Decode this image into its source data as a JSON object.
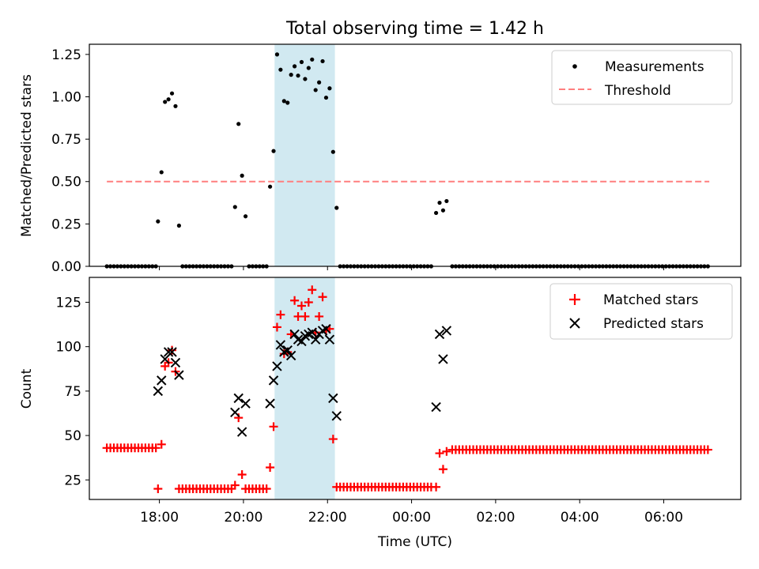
{
  "title": "Total observing time = 1.42 h",
  "xlabel": "Time (UTC)",
  "x_ticks": [
    "18:00",
    "20:00",
    "22:00",
    "00:00",
    "02:00",
    "04:00",
    "06:00"
  ],
  "colors": {
    "measurements": "#000000",
    "threshold": "#ff7f7f",
    "matched": "#ff0000",
    "predicted": "#000000",
    "shade": "#add8e6"
  },
  "chart_data": [
    {
      "type": "scatter",
      "panel": "top",
      "ylabel": "Matched/Predicted stars",
      "ylim": [
        0,
        1.31
      ],
      "y_ticks": [
        "0.00",
        "0.25",
        "0.50",
        "0.75",
        "1.00",
        "1.25"
      ],
      "xlim": [
        "16:20",
        "07:50"
      ],
      "highlight_span": [
        "20:45",
        "22:10"
      ],
      "legend": {
        "location": "upper right",
        "entries": [
          "Measurements",
          "Threshold"
        ]
      },
      "threshold": {
        "name": "Threshold",
        "y": 0.5,
        "x_range": [
          "16:45",
          "07:05"
        ]
      },
      "series": [
        {
          "name": "Measurements",
          "points": [
            [
              "16:45",
              0
            ],
            [
              "16:50",
              0
            ],
            [
              "16:55",
              0
            ],
            [
              "17:00",
              0
            ],
            [
              "17:05",
              0
            ],
            [
              "17:10",
              0
            ],
            [
              "17:15",
              0
            ],
            [
              "17:20",
              0
            ],
            [
              "17:25",
              0
            ],
            [
              "17:30",
              0
            ],
            [
              "17:35",
              0
            ],
            [
              "17:40",
              0
            ],
            [
              "17:45",
              0
            ],
            [
              "17:50",
              0
            ],
            [
              "17:55",
              0
            ],
            [
              "17:58",
              0.265
            ],
            [
              "18:03",
              0.555
            ],
            [
              "18:08",
              0.97
            ],
            [
              "18:13",
              0.985
            ],
            [
              "18:18",
              1.02
            ],
            [
              "18:23",
              0.945
            ],
            [
              "18:28",
              0.24
            ],
            [
              "18:33",
              0
            ],
            [
              "18:38",
              0
            ],
            [
              "18:43",
              0
            ],
            [
              "18:48",
              0
            ],
            [
              "18:53",
              0
            ],
            [
              "18:58",
              0
            ],
            [
              "19:03",
              0
            ],
            [
              "19:08",
              0
            ],
            [
              "19:13",
              0
            ],
            [
              "19:18",
              0
            ],
            [
              "19:23",
              0
            ],
            [
              "19:28",
              0
            ],
            [
              "19:33",
              0
            ],
            [
              "19:38",
              0
            ],
            [
              "19:43",
              0
            ],
            [
              "19:48",
              0.35
            ],
            [
              "19:53",
              0.84
            ],
            [
              "19:58",
              0.535
            ],
            [
              "20:03",
              0.295
            ],
            [
              "20:08",
              0
            ],
            [
              "20:13",
              0
            ],
            [
              "20:18",
              0
            ],
            [
              "20:23",
              0
            ],
            [
              "20:28",
              0
            ],
            [
              "20:33",
              0
            ],
            [
              "20:38",
              0.47
            ],
            [
              "20:43",
              0.68
            ],
            [
              "20:48",
              1.25
            ],
            [
              "20:53",
              1.16
            ],
            [
              "20:58",
              0.975
            ],
            [
              "21:03",
              0.965
            ],
            [
              "21:08",
              1.13
            ],
            [
              "21:13",
              1.18
            ],
            [
              "21:18",
              1.125
            ],
            [
              "21:23",
              1.205
            ],
            [
              "21:28",
              1.105
            ],
            [
              "21:33",
              1.17
            ],
            [
              "21:38",
              1.22
            ],
            [
              "21:43",
              1.04
            ],
            [
              "21:48",
              1.085
            ],
            [
              "21:53",
              1.21
            ],
            [
              "21:58",
              0.995
            ],
            [
              "22:03",
              1.05
            ],
            [
              "22:08",
              0.675
            ],
            [
              "22:13",
              0.345
            ],
            [
              "22:18",
              0
            ],
            [
              "22:23",
              0
            ],
            [
              "22:28",
              0
            ],
            [
              "22:33",
              0
            ],
            [
              "22:38",
              0
            ],
            [
              "22:43",
              0
            ],
            [
              "22:48",
              0
            ],
            [
              "22:53",
              0
            ],
            [
              "22:58",
              0
            ],
            [
              "23:03",
              0
            ],
            [
              "23:08",
              0
            ],
            [
              "23:13",
              0
            ],
            [
              "23:18",
              0
            ],
            [
              "23:23",
              0
            ],
            [
              "23:28",
              0
            ],
            [
              "23:33",
              0
            ],
            [
              "23:38",
              0
            ],
            [
              "23:43",
              0
            ],
            [
              "23:48",
              0
            ],
            [
              "23:53",
              0
            ],
            [
              "23:58",
              0
            ],
            [
              "00:03",
              0
            ],
            [
              "00:08",
              0
            ],
            [
              "00:13",
              0
            ],
            [
              "00:18",
              0
            ],
            [
              "00:23",
              0
            ],
            [
              "00:28",
              0
            ],
            [
              "00:35",
              0.315
            ],
            [
              "00:40",
              0.375
            ],
            [
              "00:45",
              0.33
            ],
            [
              "00:50",
              0.385
            ],
            [
              "00:58",
              0
            ],
            [
              "01:03",
              0
            ],
            [
              "01:08",
              0
            ],
            [
              "01:13",
              0
            ],
            [
              "01:18",
              0
            ],
            [
              "01:23",
              0
            ],
            [
              "01:28",
              0
            ],
            [
              "01:33",
              0
            ],
            [
              "01:38",
              0
            ],
            [
              "01:43",
              0
            ],
            [
              "01:48",
              0
            ],
            [
              "01:53",
              0
            ],
            [
              "01:58",
              0
            ],
            [
              "02:03",
              0
            ],
            [
              "02:08",
              0
            ],
            [
              "02:13",
              0
            ],
            [
              "02:18",
              0
            ],
            [
              "02:23",
              0
            ],
            [
              "02:28",
              0
            ],
            [
              "02:33",
              0
            ],
            [
              "02:38",
              0
            ],
            [
              "02:43",
              0
            ],
            [
              "02:48",
              0
            ],
            [
              "02:53",
              0
            ],
            [
              "02:58",
              0
            ],
            [
              "03:03",
              0
            ],
            [
              "03:08",
              0
            ],
            [
              "03:13",
              0
            ],
            [
              "03:18",
              0
            ],
            [
              "03:23",
              0
            ],
            [
              "03:28",
              0
            ],
            [
              "03:33",
              0
            ],
            [
              "03:38",
              0
            ],
            [
              "03:43",
              0
            ],
            [
              "03:48",
              0
            ],
            [
              "03:53",
              0
            ],
            [
              "03:58",
              0
            ],
            [
              "04:03",
              0
            ],
            [
              "04:08",
              0
            ],
            [
              "04:13",
              0
            ],
            [
              "04:18",
              0
            ],
            [
              "04:23",
              0
            ],
            [
              "04:28",
              0
            ],
            [
              "04:33",
              0
            ],
            [
              "04:38",
              0
            ],
            [
              "04:43",
              0
            ],
            [
              "04:48",
              0
            ],
            [
              "04:53",
              0
            ],
            [
              "04:58",
              0
            ],
            [
              "05:03",
              0
            ],
            [
              "05:08",
              0
            ],
            [
              "05:13",
              0
            ],
            [
              "05:18",
              0
            ],
            [
              "05:23",
              0
            ],
            [
              "05:28",
              0
            ],
            [
              "05:33",
              0
            ],
            [
              "05:38",
              0
            ],
            [
              "05:43",
              0
            ],
            [
              "05:48",
              0
            ],
            [
              "05:53",
              0
            ],
            [
              "05:58",
              0
            ],
            [
              "06:03",
              0
            ],
            [
              "06:08",
              0
            ],
            [
              "06:13",
              0
            ],
            [
              "06:18",
              0
            ],
            [
              "06:23",
              0
            ],
            [
              "06:28",
              0
            ],
            [
              "06:33",
              0
            ],
            [
              "06:38",
              0
            ],
            [
              "06:43",
              0
            ],
            [
              "06:48",
              0
            ],
            [
              "06:53",
              0
            ],
            [
              "06:58",
              0
            ],
            [
              "07:03",
              0
            ]
          ]
        }
      ]
    },
    {
      "type": "scatter",
      "panel": "bottom",
      "ylabel": "Count",
      "ylim": [
        14,
        139
      ],
      "y_ticks": [
        "25",
        "50",
        "75",
        "100",
        "125"
      ],
      "xlim": [
        "16:20",
        "07:50"
      ],
      "highlight_span": [
        "20:45",
        "22:10"
      ],
      "legend": {
        "location": "upper right",
        "entries": [
          "Matched stars",
          "Predicted stars"
        ]
      },
      "series": [
        {
          "name": "Matched stars",
          "marker": "+",
          "segments": [
            {
              "start": "16:45",
              "end": "17:55",
              "step_min": 5,
              "y": 43
            },
            {
              "start": "18:33",
              "end": "19:43",
              "step_min": 5,
              "y": 20
            },
            {
              "start": "20:08",
              "end": "20:33",
              "step_min": 5,
              "y": 20
            },
            {
              "start": "22:18",
              "end": "00:28",
              "step_min": 5,
              "y": 21
            },
            {
              "start": "00:58",
              "end": "07:03",
              "step_min": 5,
              "y": 42
            }
          ],
          "points": [
            [
              "17:58",
              20
            ],
            [
              "18:03",
              45
            ],
            [
              "18:08",
              89
            ],
            [
              "18:13",
              91
            ],
            [
              "18:18",
              98
            ],
            [
              "18:23",
              86
            ],
            [
              "18:28",
              20
            ],
            [
              "19:48",
              22
            ],
            [
              "19:53",
              60
            ],
            [
              "19:58",
              28
            ],
            [
              "20:03",
              20
            ],
            [
              "20:38",
              32
            ],
            [
              "20:43",
              55
            ],
            [
              "20:48",
              111
            ],
            [
              "20:53",
              118
            ],
            [
              "20:58",
              96
            ],
            [
              "21:03",
              97
            ],
            [
              "21:08",
              107
            ],
            [
              "21:13",
              126
            ],
            [
              "21:18",
              117
            ],
            [
              "21:23",
              123
            ],
            [
              "21:28",
              117
            ],
            [
              "21:33",
              125
            ],
            [
              "21:38",
              132
            ],
            [
              "21:43",
              108
            ],
            [
              "21:48",
              117
            ],
            [
              "21:53",
              128
            ],
            [
              "21:58",
              109
            ],
            [
              "22:03",
              110
            ],
            [
              "22:08",
              48
            ],
            [
              "22:13",
              21
            ],
            [
              "00:35",
              21
            ],
            [
              "00:40",
              40
            ],
            [
              "00:45",
              31
            ],
            [
              "00:50",
              41
            ]
          ]
        },
        {
          "name": "Predicted stars",
          "marker": "x",
          "points": [
            [
              "17:58",
              75
            ],
            [
              "18:03",
              81
            ],
            [
              "18:08",
              93
            ],
            [
              "18:13",
              97
            ],
            [
              "18:18",
              97
            ],
            [
              "18:23",
              91
            ],
            [
              "18:28",
              84
            ],
            [
              "19:48",
              63
            ],
            [
              "19:53",
              71
            ],
            [
              "19:58",
              52
            ],
            [
              "20:03",
              68
            ],
            [
              "20:38",
              68
            ],
            [
              "20:43",
              81
            ],
            [
              "20:48",
              89
            ],
            [
              "20:53",
              101
            ],
            [
              "20:58",
              97
            ],
            [
              "21:03",
              98
            ],
            [
              "21:08",
              95
            ],
            [
              "21:13",
              107
            ],
            [
              "21:18",
              104
            ],
            [
              "21:23",
              103
            ],
            [
              "21:28",
              106
            ],
            [
              "21:33",
              107
            ],
            [
              "21:38",
              108
            ],
            [
              "21:43",
              104
            ],
            [
              "21:48",
              107
            ],
            [
              "21:53",
              109
            ],
            [
              "21:58",
              110
            ],
            [
              "22:03",
              104
            ],
            [
              "22:08",
              71
            ],
            [
              "22:13",
              61
            ],
            [
              "00:35",
              66
            ],
            [
              "00:40",
              107
            ],
            [
              "00:45",
              93
            ],
            [
              "00:50",
              109
            ]
          ]
        }
      ]
    }
  ]
}
